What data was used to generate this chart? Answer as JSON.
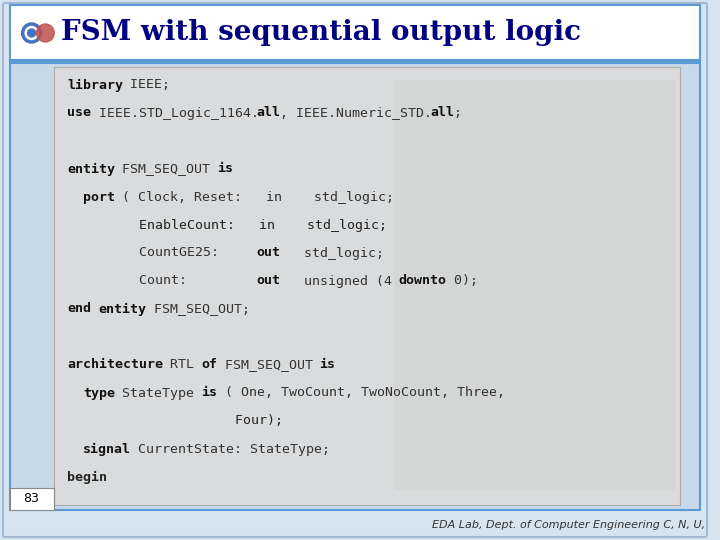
{
  "title": "FSM with sequential output logic",
  "slide_bg": "#d6e4f0",
  "header_bg": "#ffffff",
  "content_bg": "#e8e8e8",
  "header_border_color": "#5b9bd5",
  "page_number": "83",
  "footer_text": "EDA Lab, Dept. of Computer Engineering C, N, U,",
  "code_lines": [
    {
      "text": "library IEEE;",
      "bold_parts": [
        "library"
      ],
      "indent": 0
    },
    {
      "text": "use IEEE.STD_Logic_1164.all, IEEE.Numeric_STD.all;",
      "bold_parts": [
        "use",
        "all",
        "all"
      ],
      "indent": 0
    },
    {
      "text": "",
      "bold_parts": [],
      "indent": 0
    },
    {
      "text": "entity FSM_SEQ_OUT is",
      "bold_parts": [
        "entity",
        "is"
      ],
      "indent": 0
    },
    {
      "text": "  port ( Clock, Reset:   in    std_logic;",
      "bold_parts": [
        "port"
      ],
      "indent": 1
    },
    {
      "text": "         EnableCount:   in    std_logic;",
      "bold_parts": [],
      "indent": 2
    },
    {
      "text": "         CountGE25:     out   std_logic;",
      "bold_parts": [
        "out"
      ],
      "indent": 2
    },
    {
      "text": "         Count:         out   unsigned (4 downto 0);",
      "bold_parts": [
        "out",
        "downto"
      ],
      "indent": 2
    },
    {
      "text": "end entity FSM_SEQ_OUT;",
      "bold_parts": [
        "end",
        "entity"
      ],
      "indent": 0
    },
    {
      "text": "",
      "bold_parts": [],
      "indent": 0
    },
    {
      "text": "architecture RTL of FSM_SEQ_OUT is",
      "bold_parts": [
        "architecture",
        "of",
        "is"
      ],
      "indent": 0
    },
    {
      "text": "  type StateType is ( One, TwoCount, TwoNoCount, Three,",
      "bold_parts": [
        "type",
        "is"
      ],
      "indent": 1
    },
    {
      "text": "                     Four);",
      "bold_parts": [],
      "indent": 3
    },
    {
      "text": "  signal CurrentState: StateType;",
      "bold_parts": [
        "signal"
      ],
      "indent": 1
    },
    {
      "text": "begin",
      "bold_parts": [
        "begin"
      ],
      "indent": 0
    }
  ],
  "icon_color1": "#4472c4",
  "icon_color2": "#c0504d",
  "title_color": "#000080",
  "code_normal_color": "#555555",
  "code_bold_color": "#000000",
  "footer_color": "#333333",
  "page_num_color": "#000000"
}
